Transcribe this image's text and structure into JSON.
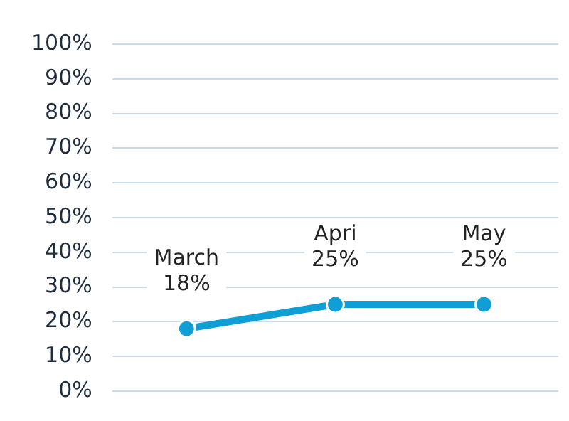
{
  "chart_data": {
    "type": "line",
    "categories": [
      "March",
      "Apri",
      "May"
    ],
    "values": [
      18,
      25,
      25
    ],
    "value_labels": [
      "18%",
      "25%",
      "25%"
    ],
    "color": "#0f9ed5",
    "ylim": [
      0,
      100
    ],
    "yticks": [
      {
        "value": 0,
        "label": "0%"
      },
      {
        "value": 10,
        "label": "10%"
      },
      {
        "value": 20,
        "label": "20%"
      },
      {
        "value": 30,
        "label": "30%"
      },
      {
        "value": 40,
        "label": "40%"
      },
      {
        "value": 50,
        "label": "50%"
      },
      {
        "value": 60,
        "label": "60%"
      },
      {
        "value": 70,
        "label": "70%"
      },
      {
        "value": 80,
        "label": "80%"
      },
      {
        "value": 90,
        "label": "90%"
      },
      {
        "value": 100,
        "label": "100%"
      }
    ],
    "grid": "y",
    "legend": false,
    "marker": "circle",
    "line_style": "solid"
  }
}
